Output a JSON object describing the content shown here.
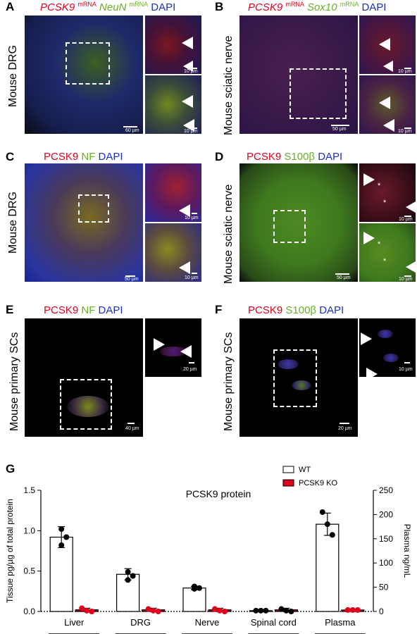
{
  "panels": {
    "A": {
      "letter": "A",
      "probe1": "PCSK9",
      "mrna1": "mRNA",
      "probe2": "NeuN",
      "mrna2": "mRNA",
      "stain": "DAPI",
      "tissue": "Mouse DRG",
      "scale_main": "60 µm",
      "scale_inset1": "10 µm",
      "scale_inset2": "10 µm"
    },
    "B": {
      "letter": "B",
      "probe1": "PCSK9",
      "mrna1": "mRNA",
      "probe2": "Sox10",
      "mrna2": "mRNA",
      "stain": "DAPI",
      "tissue": "Mouse sciatic nerve",
      "scale_main": "50 µm",
      "scale_inset1": "10 µm",
      "scale_inset2": "10 µm"
    },
    "C": {
      "letter": "C",
      "m1": "PCSK9",
      "m2": "NF",
      "stain": "DAPI",
      "tissue": "Mouse DRG",
      "scale_main": "50 µm",
      "scale_inset1": "10 µm",
      "scale_inset2": "10 µm"
    },
    "D": {
      "letter": "D",
      "m1": "PCSK9",
      "m2": "S100β",
      "stain": "DAPI",
      "tissue": "Mouse sciatic nerve",
      "scale_main": "50 µm",
      "scale_inset1": "10 µm",
      "scale_inset2": "10 µm",
      "asterisk": "*"
    },
    "E": {
      "letter": "E",
      "m1": "PCSK9",
      "m2": "NF",
      "stain": "DAPI",
      "tissue": "Mouse primary SCs",
      "scale_main": "40 µm",
      "scale_inset": "20 µm"
    },
    "F": {
      "letter": "F",
      "m1": "PCSK9",
      "m2": "S100β",
      "stain": "DAPI",
      "tissue": "Mouse primary SCs",
      "scale_main": "20 µm",
      "scale_inset": "10 µm"
    },
    "G": {
      "letter": "G"
    }
  },
  "colors": {
    "red": "#e3001b",
    "green": "#6ab023",
    "blue": "#1c2fc9"
  },
  "chart_data": {
    "type": "bar",
    "title": "PCSK9 protein",
    "categories": [
      "Liver",
      "DRG",
      "Nerve",
      "Spinal cord",
      "Plasma"
    ],
    "ylabel_left": "Tissue pg/µg of total protein",
    "ylabel_right": "Plasma ng/mL",
    "ylim_left": [
      0,
      1.5
    ],
    "yticks_left": [
      "0.0",
      "0.5",
      "1.0",
      "1.5"
    ],
    "ylim_right": [
      0,
      250
    ],
    "yticks_right": [
      "0",
      "50",
      "100",
      "150",
      "200",
      "250"
    ],
    "legend_position": "top-right",
    "series": [
      {
        "name": "WT",
        "color": "#ffffff",
        "values": [
          0.92,
          0.46,
          0.29,
          0.01,
          180
        ],
        "errors": [
          0.13,
          0.07,
          0.02,
          0.0,
          23
        ],
        "points": [
          [
            1.02,
            0.92,
            0.82
          ],
          [
            0.49,
            0.44,
            0.39
          ],
          [
            0.31,
            0.29,
            0.28
          ],
          [
            0.01,
            0.01,
            0.01
          ],
          [
            205,
            180,
            158
          ]
        ],
        "point_color": "#000000"
      },
      {
        "name": "PCSK9 KO",
        "color": "#e3001b",
        "values": [
          0.02,
          0.02,
          0.02,
          0.02,
          3
        ],
        "errors": [
          0.02,
          0.02,
          0.02,
          0.02,
          1
        ],
        "points": [
          [
            0.04,
            0.01,
            0.0
          ],
          [
            0.03,
            0.01,
            0.0
          ],
          [
            0.03,
            0.01,
            0.0
          ],
          [
            0.03,
            0.01,
            0.0
          ],
          [
            3,
            3,
            3
          ]
        ],
        "point_color": "#e3001b"
      }
    ]
  }
}
